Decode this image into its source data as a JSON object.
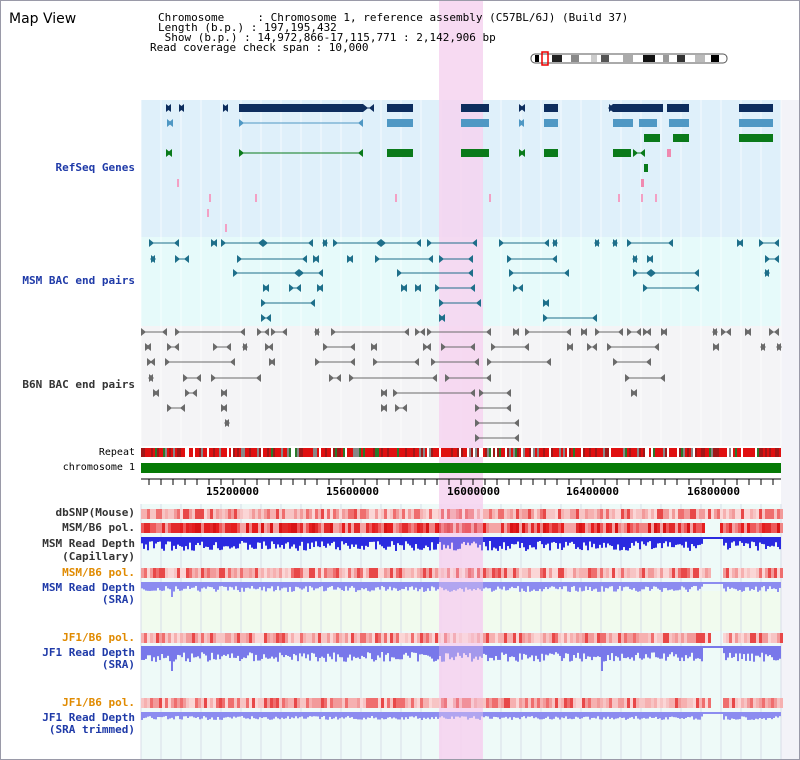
{
  "view_title": "Map View",
  "header": {
    "line1": "Chromosome     : Chromosome 1, reference assembly (C57BL/6J) (Build 37)",
    "line2": "Length (b.p.) : 197,195,432",
    "line3": " Show (b.p.) : 14,972,866-17,115,771 : 2,142,906 bp",
    "line4": "Read coverage check span : 10,000"
  },
  "tracks": {
    "refseq": "RefSeq Genes",
    "msm_bac": "MSM BAC end pairs",
    "b6n_bac": "B6N BAC end pairs",
    "repeat": "Repeat",
    "chromosome": "chromosome 1",
    "dbsnp": "dbSNP(Mouse)",
    "msm_b6_pol": "MSM/B6 pol.",
    "msm_read_depth_cap_1": "MSM Read Depth",
    "msm_read_depth_cap_2": "(Capillary)",
    "msm_b6_pol_sra": "MSM/B6 pol.",
    "msm_read_depth_sra_1": "MSM Read Depth",
    "msm_read_depth_sra_2": "(SRA)",
    "jf1_b6_pol": "JF1/B6 pol.",
    "jf1_read_depth_1": "JF1 Read Depth",
    "jf1_read_depth_2": "(SRA)",
    "jf1_b6_pol_trim": "JF1/B6 pol.",
    "jf1_read_depth_trim_1": "JF1 Read Depth",
    "jf1_read_depth_trim_2": "(SRA trimmed)"
  },
  "axis_ticks": [
    "15200000",
    "15600000",
    "16000000",
    "16400000",
    "16800000"
  ],
  "colors": {
    "highlight": "#f6d3f0",
    "refseq_bg": "#dff0fa",
    "msm_bg": "#e6fafa",
    "b6n_bg": "#f4f4f6",
    "gene_dark": "#0d2d5e",
    "gene_mid": "#4f98c4",
    "gene_green": "#0a7a1a",
    "chromosome": "#057a05"
  }
}
